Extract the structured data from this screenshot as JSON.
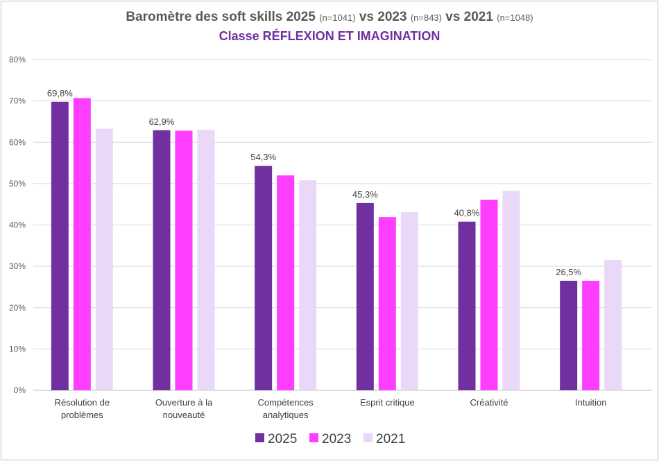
{
  "header": {
    "title_main": "Baromètre des soft skills 2025",
    "title_n2025": "(n=1041)",
    "title_vs1": "vs 2023",
    "title_n2023": "(n=843)",
    "title_vs2": "vs 2021",
    "title_n2021": "(n=1048)",
    "subtitle": "Classe RÉFLEXION ET IMAGINATION"
  },
  "colors": {
    "subtitle": "#7030a0",
    "s2025": "#7030a0",
    "s2023": "#ff3dff",
    "s2021": "#ead8f9",
    "grid": "#d9d9d9",
    "axis": "#bfbfbf"
  },
  "chart_data": {
    "type": "bar",
    "categories": [
      [
        "Résolution de",
        "problèmes"
      ],
      [
        "Ouverture à la",
        "nouveauté"
      ],
      [
        "Compétences",
        "analytiques"
      ],
      [
        "Esprit critique"
      ],
      [
        "Créativité"
      ],
      [
        "Intuition"
      ]
    ],
    "series": [
      {
        "name": "2025",
        "values": [
          69.8,
          62.9,
          54.3,
          45.3,
          40.8,
          26.5
        ],
        "data_labels": [
          "69,8%",
          "62,9%",
          "54,3%",
          "45,3%",
          "40,8%",
          "26,5%"
        ]
      },
      {
        "name": "2023",
        "values": [
          70.7,
          62.8,
          52.0,
          41.9,
          46.1,
          26.5
        ]
      },
      {
        "name": "2021",
        "values": [
          63.3,
          63.0,
          50.8,
          43.1,
          48.2,
          31.5
        ]
      }
    ],
    "yticks": [
      "0%",
      "10%",
      "20%",
      "30%",
      "40%",
      "50%",
      "60%",
      "70%",
      "80%"
    ],
    "ylim": [
      0,
      80
    ],
    "grid": true,
    "legend": "bottom"
  }
}
